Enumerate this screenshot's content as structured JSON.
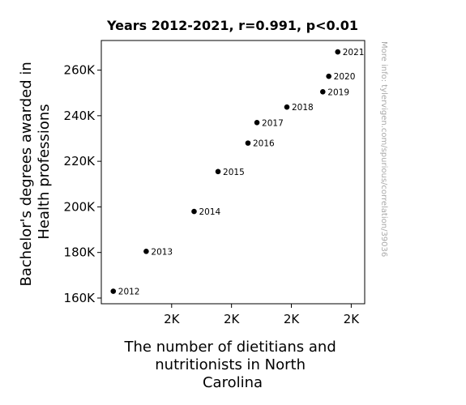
{
  "chart_data": {
    "type": "scatter",
    "title": "Years 2012-2021, r=0.991, p<0.01",
    "xlabel_lines": [
      "The number of dietitians and",
      "nutritionists in North",
      "Carolina"
    ],
    "ylabel_lines": [
      "Bachelor's degrees awarded in",
      "Health professions"
    ],
    "x_tick_labels": [
      "2K",
      "2K",
      "2K",
      "2K"
    ],
    "x_ticks": [
      2100,
      2300,
      2500,
      2700
    ],
    "xlim": [
      1865,
      2745
    ],
    "y_tick_labels": [
      "160K",
      "180K",
      "200K",
      "220K",
      "240K",
      "260K"
    ],
    "y_ticks": [
      160000,
      180000,
      200000,
      220000,
      240000,
      260000
    ],
    "ylim": [
      157500,
      273000
    ],
    "points": [
      {
        "label": "2012",
        "x": 1905,
        "y": 163000
      },
      {
        "label": "2013",
        "x": 2015,
        "y": 180500
      },
      {
        "label": "2014",
        "x": 2175,
        "y": 198000
      },
      {
        "label": "2015",
        "x": 2255,
        "y": 215500
      },
      {
        "label": "2016",
        "x": 2355,
        "y": 228000
      },
      {
        "label": "2017",
        "x": 2385,
        "y": 237000
      },
      {
        "label": "2018",
        "x": 2485,
        "y": 243800
      },
      {
        "label": "2019",
        "x": 2605,
        "y": 250500
      },
      {
        "label": "2020",
        "x": 2625,
        "y": 257300
      },
      {
        "label": "2021",
        "x": 2655,
        "y": 268000
      }
    ],
    "marker_color": "#000000",
    "grid": false,
    "watermark": "More info: tylervigen.com/spurious/correlation/39036"
  }
}
